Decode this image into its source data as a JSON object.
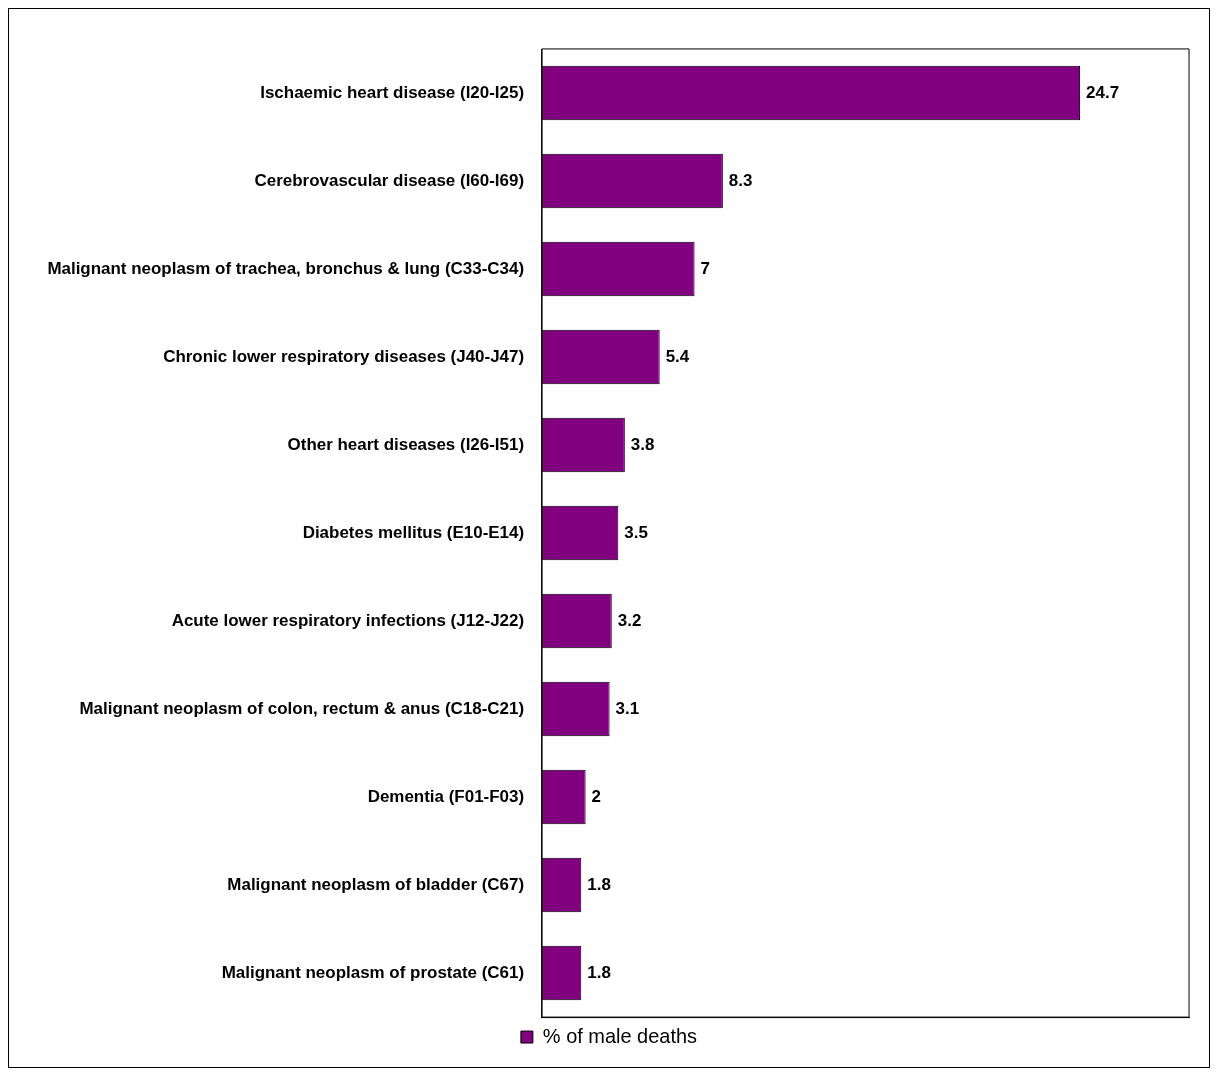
{
  "chart_data": {
    "type": "bar",
    "orientation": "horizontal",
    "categories": [
      "Ischaemic heart disease (I20-I25)",
      "Cerebrovascular disease (I60-I69)",
      "Malignant neoplasm of trachea, bronchus & lung (C33-C34)",
      "Chronic lower respiratory diseases (J40-J47)",
      "Other heart diseases (I26-I51)",
      "Diabetes mellitus (E10-E14)",
      "Acute lower respiratory infections (J12-J22)",
      "Malignant neoplasm of colon, rectum & anus (C18-C21)",
      "Dementia (F01-F03)",
      "Malignant neoplasm of bladder (C67)",
      "Malignant neoplasm of prostate (C61)"
    ],
    "series": [
      {
        "name": "% of male deaths",
        "color": "#800080",
        "values": [
          24.7,
          8.3,
          7,
          5.4,
          3.8,
          3.5,
          3.2,
          3.1,
          2,
          1.8,
          1.8
        ]
      }
    ],
    "xlim": [
      0,
      29.7
    ],
    "tick_labels": "y",
    "data_labels": true,
    "legend": "bottom",
    "grid": false
  }
}
